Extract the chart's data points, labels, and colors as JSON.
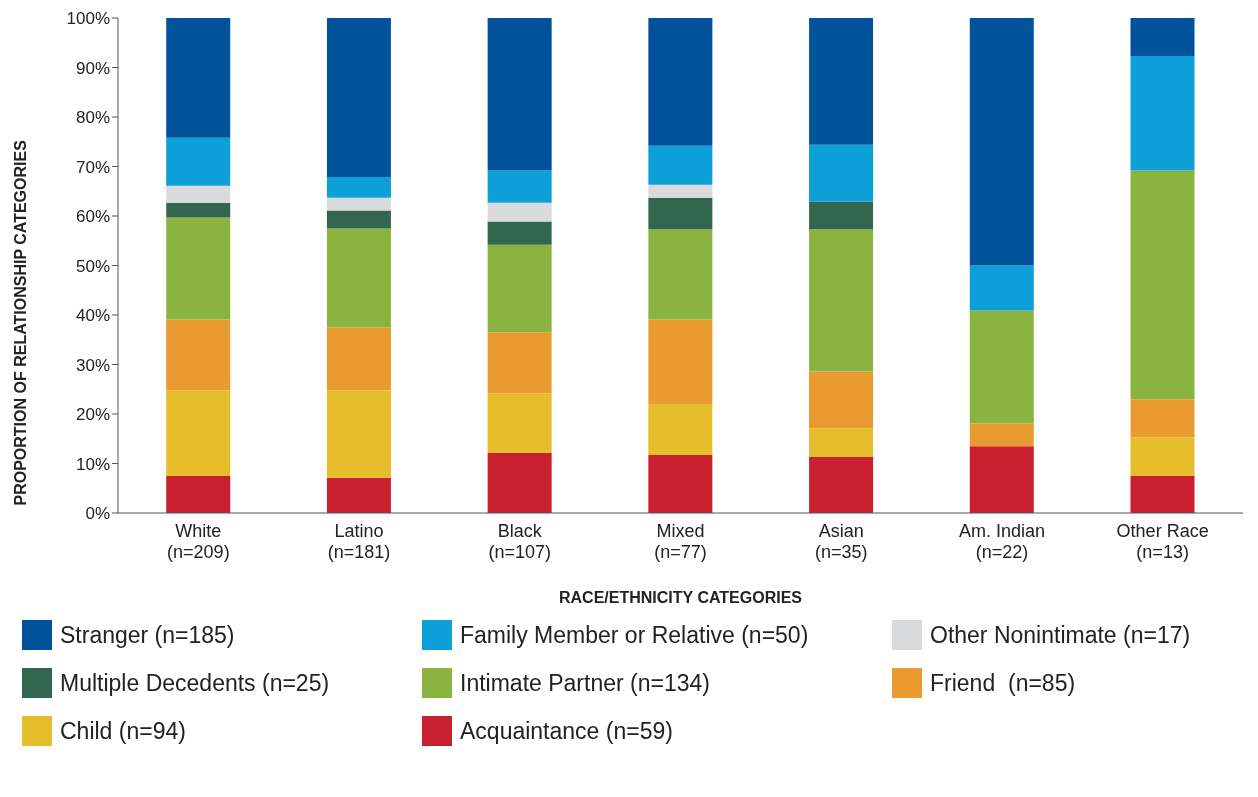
{
  "chart_data": {
    "type": "bar",
    "stacked": true,
    "xlabel": "RACE/ETHNICITY CATEGORIES",
    "ylabel": "PROPORTION OF RELATIONSHIP CATEGORIES",
    "categories": [
      "White\n(n=209)",
      "Latino\n(n=181)",
      "Black\n(n=107)",
      "Mixed\n(n=77)",
      "Asian\n(n=35)",
      "Am. Indian\n(n=22)",
      "Other Race\n(n=13)"
    ],
    "ylim": [
      0,
      100
    ],
    "yticks": [
      {
        "value": 0,
        "label": "0%"
      },
      {
        "value": 10,
        "label": "10%"
      },
      {
        "value": 20,
        "label": "20%"
      },
      {
        "value": 30,
        "label": "30%"
      },
      {
        "value": 40,
        "label": "40%"
      },
      {
        "value": 50,
        "label": "50%"
      },
      {
        "value": 60,
        "label": "60%"
      },
      {
        "value": 70,
        "label": "70%"
      },
      {
        "value": 80,
        "label": "80%"
      },
      {
        "value": 90,
        "label": "90%"
      },
      {
        "value": 100,
        "label": "100%"
      }
    ],
    "grid": false,
    "legend": "bottom",
    "series": [
      {
        "name": "Acquaintance (n=59)",
        "color": "#c8202f",
        "values": [
          7.5,
          7.1,
          12.1,
          11.7,
          11.3,
          13.5,
          7.5
        ]
      },
      {
        "name": "Child (n=94)",
        "color": "#e6bd2b",
        "values": [
          17.3,
          17.7,
          12.1,
          10.3,
          5.8,
          0,
          7.8
        ]
      },
      {
        "name": "Friend  (n=85)",
        "color": "#e99b30",
        "values": [
          14.3,
          12.7,
          12.3,
          17.1,
          11.5,
          4.6,
          7.7
        ]
      },
      {
        "name": "Intimate Partner (n=134)",
        "color": "#8ab43f",
        "values": [
          20.6,
          20.0,
          17.7,
          18.2,
          28.7,
          22.8,
          46.2
        ]
      },
      {
        "name": "Multiple Decedents (n=25)",
        "color": "#326650",
        "values": [
          3.0,
          3.6,
          4.7,
          6.4,
          5.6,
          0,
          0
        ]
      },
      {
        "name": "Other Nonintimate (n=17)",
        "color": "#d9dadb",
        "values": [
          3.4,
          2.6,
          3.8,
          2.6,
          0,
          0,
          0
        ]
      },
      {
        "name": "Family Member or Relative (n=50)",
        "color": "#0c9fd8",
        "values": [
          9.7,
          4.2,
          6.5,
          7.9,
          11.5,
          9.1,
          23.1
        ]
      },
      {
        "name": "Stranger (n=185)",
        "color": "#00539b",
        "values": [
          24.2,
          32.1,
          30.8,
          25.8,
          25.6,
          50.0,
          7.7
        ]
      }
    ]
  }
}
